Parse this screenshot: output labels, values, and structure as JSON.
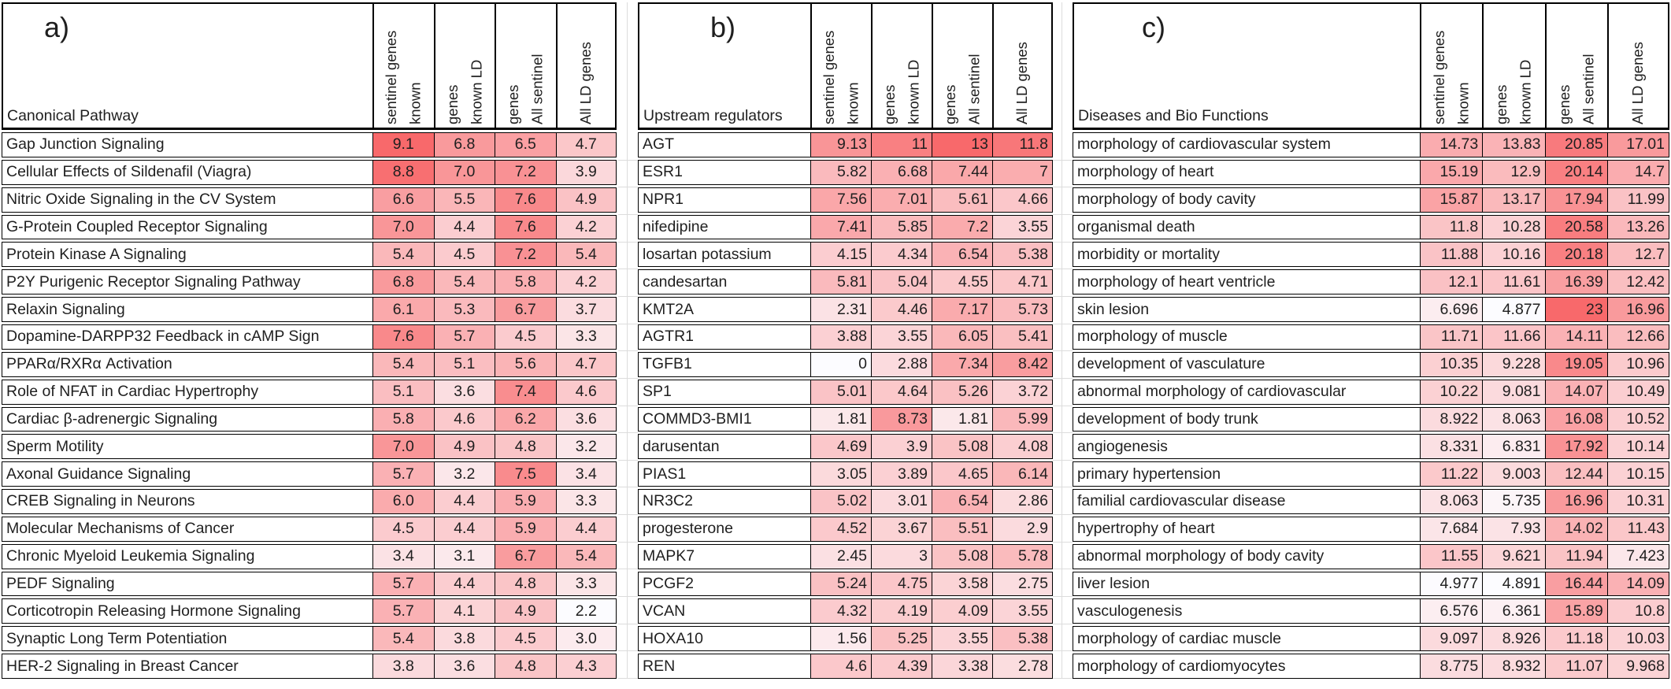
{
  "heat_scale": {
    "min_color": "#FCFCFF",
    "max_color": "#F8696B"
  },
  "chart_data": [
    {
      "type": "heatmap",
      "label": "a)",
      "row_header": "Canonical Pathway",
      "column_headers": [
        "known sentinel genes",
        "known LD genes",
        "All sentinel genes",
        "All LD genes"
      ],
      "header_lines_display": [
        "known\nsentinel genes",
        "known LD\ngenes",
        "All sentinel\ngenes",
        "All LD genes"
      ],
      "decimals": 1,
      "rows": [
        {
          "name": "Gap Junction Signaling",
          "values": [
            9.1,
            6.8,
            6.5,
            4.7
          ]
        },
        {
          "name": "Cellular Effects of Sildenafil (Viagra)",
          "values": [
            8.8,
            7.0,
            7.2,
            3.9
          ]
        },
        {
          "name": "Nitric Oxide Signaling in the CV System",
          "values": [
            6.6,
            5.5,
            7.6,
            4.9
          ]
        },
        {
          "name": "G-Protein Coupled Receptor Signaling",
          "values": [
            7.0,
            4.4,
            7.6,
            4.2
          ]
        },
        {
          "name": "Protein Kinase A Signaling",
          "values": [
            5.4,
            4.5,
            7.2,
            5.4
          ]
        },
        {
          "name": "P2Y Purigenic Receptor Signaling Pathway",
          "values": [
            6.8,
            5.4,
            5.8,
            4.2
          ]
        },
        {
          "name": "Relaxin Signaling",
          "values": [
            6.1,
            5.3,
            6.7,
            3.7
          ]
        },
        {
          "name": "Dopamine-DARPP32 Feedback in cAMP Sign",
          "values": [
            7.6,
            5.7,
            4.5,
            3.3
          ]
        },
        {
          "name": "PPARα/RXRα Activation",
          "values": [
            5.4,
            5.1,
            5.6,
            4.7
          ]
        },
        {
          "name": "Role of NFAT in Cardiac Hypertrophy",
          "values": [
            5.1,
            3.6,
            7.4,
            4.6
          ]
        },
        {
          "name": "Cardiac β-adrenergic Signaling",
          "values": [
            5.8,
            4.6,
            6.2,
            3.6
          ]
        },
        {
          "name": "Sperm Motility",
          "values": [
            7.0,
            4.9,
            4.8,
            3.2
          ]
        },
        {
          "name": "Axonal Guidance Signaling",
          "values": [
            5.7,
            3.2,
            7.5,
            3.4
          ]
        },
        {
          "name": "CREB Signaling in Neurons",
          "values": [
            6.0,
            4.4,
            5.9,
            3.3
          ]
        },
        {
          "name": "Molecular Mechanisms of Cancer",
          "values": [
            4.5,
            4.4,
            5.9,
            4.4
          ]
        },
        {
          "name": "Chronic Myeloid Leukemia Signaling",
          "values": [
            3.4,
            3.1,
            6.7,
            5.4
          ]
        },
        {
          "name": "PEDF Signaling",
          "values": [
            5.7,
            4.4,
            4.8,
            3.3
          ]
        },
        {
          "name": "Corticotropin Releasing Hormone Signaling",
          "values": [
            5.7,
            4.1,
            4.9,
            2.2
          ]
        },
        {
          "name": "Synaptic Long Term Potentiation",
          "values": [
            5.4,
            3.8,
            4.5,
            3.0
          ]
        },
        {
          "name": "HER-2 Signaling in Breast Cancer",
          "values": [
            3.8,
            3.6,
            4.8,
            4.3
          ]
        }
      ]
    },
    {
      "type": "heatmap",
      "label": "b)",
      "row_header": "Upstream regulators",
      "column_headers": [
        "known sentinel genes",
        "known LD genes",
        "All sentinel genes",
        "All LD genes"
      ],
      "header_lines_display": [
        "known\nsentinel genes",
        "known LD\ngenes",
        "All sentinel\ngenes",
        "All LD genes"
      ],
      "decimals": null,
      "rows": [
        {
          "name": "AGT",
          "values": [
            9.13,
            11,
            13,
            11.8
          ]
        },
        {
          "name": "ESR1",
          "values": [
            5.82,
            6.68,
            7.44,
            7
          ]
        },
        {
          "name": "NPR1",
          "values": [
            7.56,
            7.01,
            5.61,
            4.66
          ]
        },
        {
          "name": "nifedipine",
          "values": [
            7.41,
            5.85,
            7.2,
            3.55
          ]
        },
        {
          "name": "losartan potassium",
          "values": [
            4.15,
            4.34,
            6.54,
            5.38
          ]
        },
        {
          "name": "candesartan",
          "values": [
            5.81,
            5.04,
            4.55,
            4.71
          ]
        },
        {
          "name": "KMT2A",
          "values": [
            2.31,
            4.46,
            7.17,
            5.73
          ]
        },
        {
          "name": "AGTR1",
          "values": [
            3.88,
            3.55,
            6.05,
            5.41
          ]
        },
        {
          "name": "TGFB1",
          "values": [
            0,
            2.88,
            7.34,
            8.42
          ]
        },
        {
          "name": "SP1",
          "values": [
            5.01,
            4.64,
            5.26,
            3.72
          ]
        },
        {
          "name": "COMMD3-BMI1",
          "values": [
            1.81,
            8.73,
            1.81,
            5.99
          ]
        },
        {
          "name": "darusentan",
          "values": [
            4.69,
            3.9,
            5.08,
            4.08
          ]
        },
        {
          "name": "PIAS1",
          "values": [
            3.05,
            3.89,
            4.65,
            6.14
          ]
        },
        {
          "name": "NR3C2",
          "values": [
            5.02,
            3.01,
            6.54,
            2.86
          ]
        },
        {
          "name": "progesterone",
          "values": [
            4.52,
            3.67,
            5.51,
            2.9
          ]
        },
        {
          "name": "MAPK7",
          "values": [
            2.45,
            3,
            5.08,
            5.78
          ]
        },
        {
          "name": "PCGF2",
          "values": [
            5.24,
            4.75,
            3.58,
            2.75
          ]
        },
        {
          "name": "VCAN",
          "values": [
            4.32,
            4.19,
            4.09,
            3.55
          ]
        },
        {
          "name": "HOXA10",
          "values": [
            1.56,
            5.25,
            3.55,
            5.38
          ]
        },
        {
          "name": "REN",
          "values": [
            4.6,
            4.39,
            3.38,
            2.78
          ]
        }
      ]
    },
    {
      "type": "heatmap",
      "label": "c)",
      "row_header": "Diseases and Bio Functions",
      "column_headers": [
        "known sentinel genes",
        "known LD genes",
        "All sentinel genes",
        "All LD genes"
      ],
      "header_lines_display": [
        "known\nsentinel genes",
        "known LD\ngenes",
        "All sentinel\ngenes",
        "All LD genes"
      ],
      "decimals": null,
      "rows": [
        {
          "name": "morphology of cardiovascular system",
          "values": [
            14.73,
            13.83,
            20.85,
            17.01
          ]
        },
        {
          "name": "morphology of heart",
          "values": [
            15.19,
            12.9,
            20.14,
            14.7
          ]
        },
        {
          "name": "morphology of body cavity",
          "values": [
            15.87,
            13.17,
            17.94,
            11.99
          ]
        },
        {
          "name": "organismal death",
          "values": [
            11.8,
            10.28,
            20.58,
            13.26
          ]
        },
        {
          "name": "morbidity or mortality",
          "values": [
            11.88,
            10.16,
            20.18,
            12.7
          ]
        },
        {
          "name": "morphology of heart ventricle",
          "values": [
            12.1,
            11.61,
            16.39,
            12.42
          ]
        },
        {
          "name": "skin lesion",
          "values": [
            6.696,
            4.877,
            23,
            16.96
          ]
        },
        {
          "name": "morphology of muscle",
          "values": [
            11.71,
            11.66,
            14.11,
            12.66
          ]
        },
        {
          "name": "development of vasculature",
          "values": [
            10.35,
            9.228,
            19.05,
            10.96
          ]
        },
        {
          "name": "abnormal morphology of cardiovascular",
          "values": [
            10.22,
            9.081,
            14.07,
            10.49
          ]
        },
        {
          "name": "development of body trunk",
          "values": [
            8.922,
            8.063,
            16.08,
            10.52
          ]
        },
        {
          "name": "angiogenesis",
          "values": [
            8.331,
            6.831,
            17.92,
            10.14
          ]
        },
        {
          "name": "primary hypertension",
          "values": [
            11.22,
            9.003,
            12.44,
            10.15
          ]
        },
        {
          "name": "familial cardiovascular disease",
          "values": [
            8.063,
            5.735,
            16.96,
            10.31
          ]
        },
        {
          "name": "hypertrophy of heart",
          "values": [
            7.684,
            7.93,
            14.02,
            11.43
          ]
        },
        {
          "name": "abnormal morphology of body cavity",
          "values": [
            11.55,
            9.621,
            11.94,
            7.423
          ]
        },
        {
          "name": "liver lesion",
          "values": [
            4.977,
            4.891,
            16.44,
            14.09
          ]
        },
        {
          "name": "vasculogenesis",
          "values": [
            6.576,
            6.361,
            15.89,
            10.8
          ]
        },
        {
          "name": "morphology of cardiac muscle",
          "values": [
            9.097,
            8.926,
            11.18,
            10.03
          ]
        },
        {
          "name": "morphology of cardiomyocytes",
          "values": [
            8.775,
            8.932,
            11.07,
            9.968
          ]
        }
      ]
    }
  ]
}
